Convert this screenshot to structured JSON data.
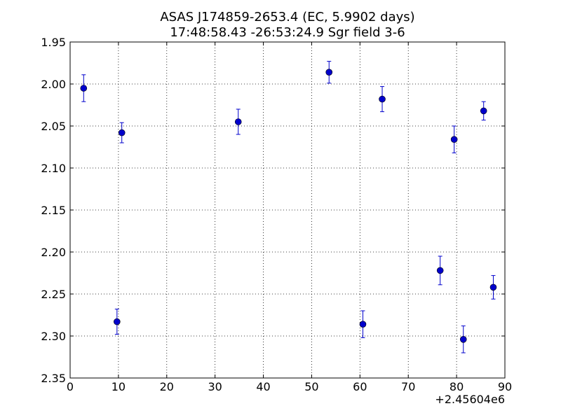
{
  "chart_data": {
    "type": "scatter",
    "title_line1": "ASAS J174859-2653.4 (EC, 5.9902 days)",
    "title_line2": "17:48:58.43 -26:53:24.9 Sgr field 3-6",
    "xlabel": "",
    "ylabel": "",
    "x_offset_label": "+2.45604e6",
    "xlim": [
      0,
      90
    ],
    "ylim": [
      1.95,
      2.35
    ],
    "y_inverted": true,
    "x_ticks": [
      0,
      10,
      20,
      30,
      40,
      50,
      60,
      70,
      80,
      90
    ],
    "x_tick_labels": [
      "0",
      "10",
      "20",
      "30",
      "40",
      "50",
      "60",
      "70",
      "80",
      "90"
    ],
    "y_ticks": [
      1.95,
      2.0,
      2.05,
      2.1,
      2.15,
      2.2,
      2.25,
      2.3,
      2.35
    ],
    "y_tick_labels": [
      "1.95",
      "2.00",
      "2.05",
      "2.10",
      "2.15",
      "2.20",
      "2.25",
      "2.30",
      "2.35"
    ],
    "grid": true,
    "marker_color": "#0000cc",
    "errorbar_color": "#0000cc",
    "x": [
      2.8,
      9.7,
      10.7,
      34.8,
      53.6,
      60.6,
      64.6,
      76.6,
      79.5,
      81.4,
      85.6,
      87.6
    ],
    "y": [
      2.005,
      2.283,
      2.058,
      2.045,
      1.986,
      2.286,
      2.018,
      2.222,
      2.066,
      2.304,
      2.032,
      2.242
    ],
    "yerr": [
      0.016,
      0.015,
      0.012,
      0.015,
      0.013,
      0.016,
      0.015,
      0.017,
      0.016,
      0.016,
      0.011,
      0.014
    ]
  }
}
